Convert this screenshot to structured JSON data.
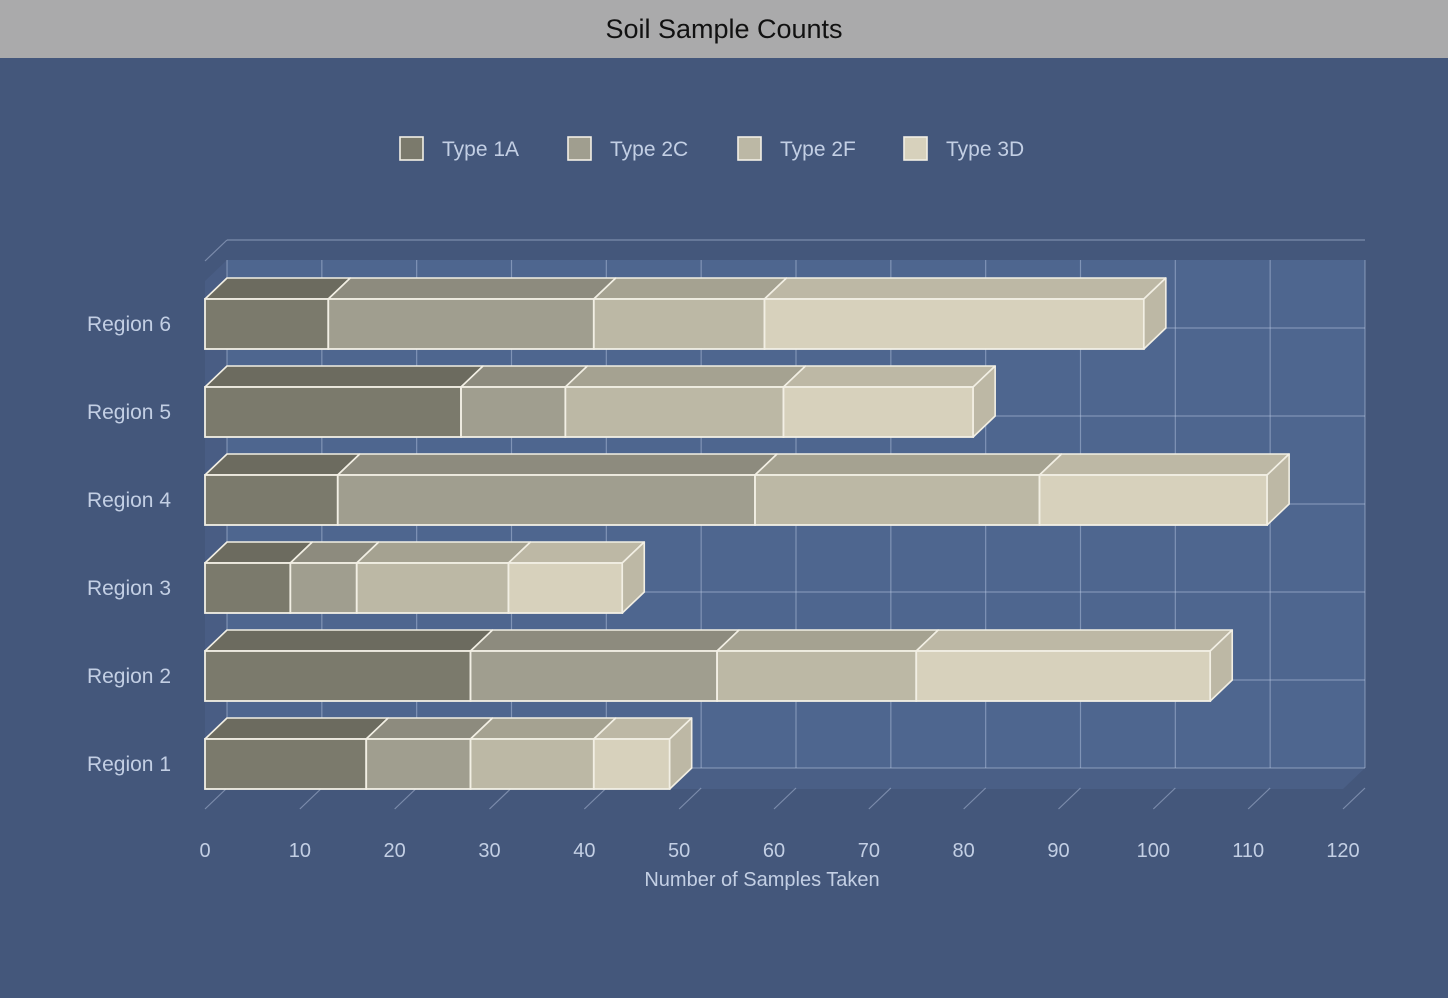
{
  "window": {
    "title": "Soil Sample Counts"
  },
  "colors": {
    "background": "#44577b",
    "title_bar": "#aaaaab",
    "series": [
      "#7b7a6c",
      "#a09e8f",
      "#bcb8a5",
      "#d7d1bc"
    ],
    "axis_text": "#c3cfe4"
  },
  "chart_data": {
    "type": "bar",
    "orientation": "horizontal",
    "stacked": true,
    "three_d": true,
    "categories": [
      "Region 1",
      "Region 2",
      "Region 3",
      "Region 4",
      "Region 5",
      "Region 6"
    ],
    "series": [
      {
        "name": "Type 1A",
        "values": [
          17,
          28,
          9,
          14,
          27,
          13
        ]
      },
      {
        "name": "Type 2C",
        "values": [
          11,
          26,
          7,
          44,
          11,
          28
        ]
      },
      {
        "name": "Type 2F",
        "values": [
          13,
          21,
          16,
          30,
          23,
          18
        ]
      },
      {
        "name": "Type 3D",
        "values": [
          8,
          31,
          12,
          24,
          20,
          40
        ]
      }
    ],
    "xlabel": "Number of Samples Taken",
    "ylabel": "",
    "xlim": [
      0,
      120
    ],
    "xticks": [
      0,
      10,
      20,
      30,
      40,
      50,
      60,
      70,
      80,
      90,
      100,
      110,
      120
    ],
    "grid": true,
    "legend_position": "top-center"
  }
}
